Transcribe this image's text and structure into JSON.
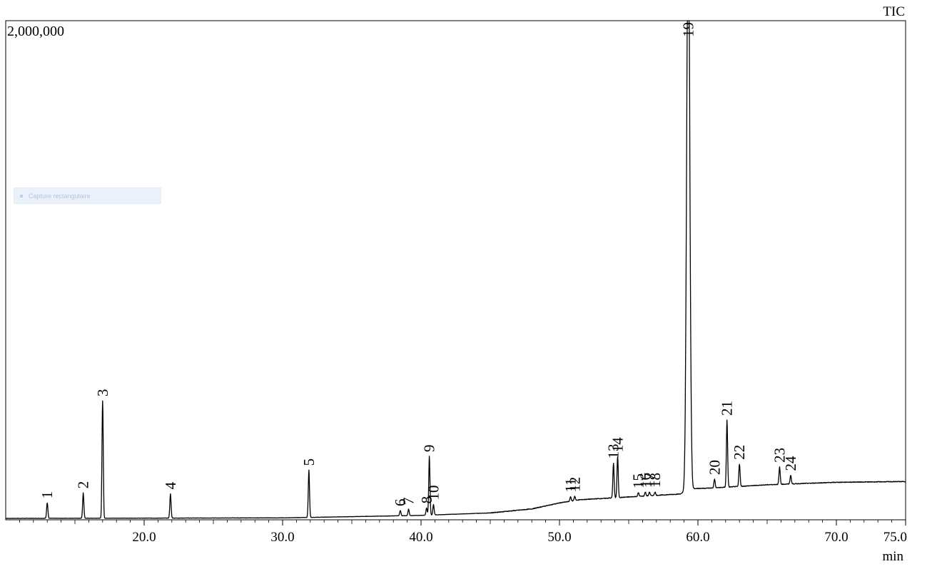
{
  "chart_data": {
    "type": "line",
    "trace_label": "TIC",
    "y_max_label": "2,000,000",
    "x_unit_label": "min",
    "x_range": [
      10.0,
      75.0
    ],
    "x_ticks": [
      {
        "value": 20.0,
        "label": "20.0"
      },
      {
        "value": 30.0,
        "label": "30.0"
      },
      {
        "value": 40.0,
        "label": "40.0"
      },
      {
        "value": 50.0,
        "label": "50.0"
      },
      {
        "value": 60.0,
        "label": "60.0"
      },
      {
        "value": 70.0,
        "label": "70.0"
      },
      {
        "value": 75.0,
        "label": "75.0"
      }
    ],
    "y_range": [
      0,
      2000000
    ],
    "peaks": [
      {
        "label": "1",
        "rt": 13.0,
        "height": 62000
      },
      {
        "label": "2",
        "rt": 15.6,
        "height": 102000
      },
      {
        "label": "3",
        "rt": 17.0,
        "height": 472000
      },
      {
        "label": "4",
        "rt": 21.9,
        "height": 98000
      },
      {
        "label": "5",
        "rt": 31.9,
        "height": 190000
      },
      {
        "label": "6",
        "rt": 38.5,
        "height": 21000
      },
      {
        "label": "7",
        "rt": 39.1,
        "height": 26000
      },
      {
        "label": "8",
        "rt": 40.4,
        "height": 29000
      },
      {
        "label": "9",
        "rt": 40.6,
        "height": 236000
      },
      {
        "label": "10",
        "rt": 40.9,
        "height": 42000
      },
      {
        "label": "11",
        "rt": 50.8,
        "height": 18000
      },
      {
        "label": "12",
        "rt": 51.1,
        "height": 18000
      },
      {
        "label": "13",
        "rt": 53.9,
        "height": 140000
      },
      {
        "label": "14",
        "rt": 54.2,
        "height": 165000
      },
      {
        "label": "15",
        "rt": 55.7,
        "height": 15000
      },
      {
        "label": "16",
        "rt": 56.2,
        "height": 16000
      },
      {
        "label": "17",
        "rt": 56.5,
        "height": 15000
      },
      {
        "label": "18",
        "rt": 56.9,
        "height": 14000
      },
      {
        "label": "19",
        "rt": 59.3,
        "height": 2400000
      },
      {
        "label": "20",
        "rt": 61.2,
        "height": 35000
      },
      {
        "label": "21",
        "rt": 62.1,
        "height": 270000
      },
      {
        "label": "22",
        "rt": 63.0,
        "height": 90000
      },
      {
        "label": "23",
        "rt": 65.9,
        "height": 70000
      },
      {
        "label": "24",
        "rt": 66.7,
        "height": 35000
      }
    ],
    "baseline": [
      {
        "x": 10.0,
        "y": 0
      },
      {
        "x": 30.0,
        "y": 2000
      },
      {
        "x": 40.0,
        "y": 12000
      },
      {
        "x": 45.0,
        "y": 22000
      },
      {
        "x": 48.0,
        "y": 38000
      },
      {
        "x": 50.0,
        "y": 62000
      },
      {
        "x": 51.5,
        "y": 75000
      },
      {
        "x": 55.0,
        "y": 86000
      },
      {
        "x": 58.7,
        "y": 98000
      },
      {
        "x": 59.8,
        "y": 120000
      },
      {
        "x": 61.0,
        "y": 122000
      },
      {
        "x": 65.0,
        "y": 135000
      },
      {
        "x": 70.0,
        "y": 145000
      },
      {
        "x": 75.0,
        "y": 148000
      }
    ],
    "grid": false
  },
  "overlay": {
    "capture_text": "Capture rectangulaire"
  }
}
